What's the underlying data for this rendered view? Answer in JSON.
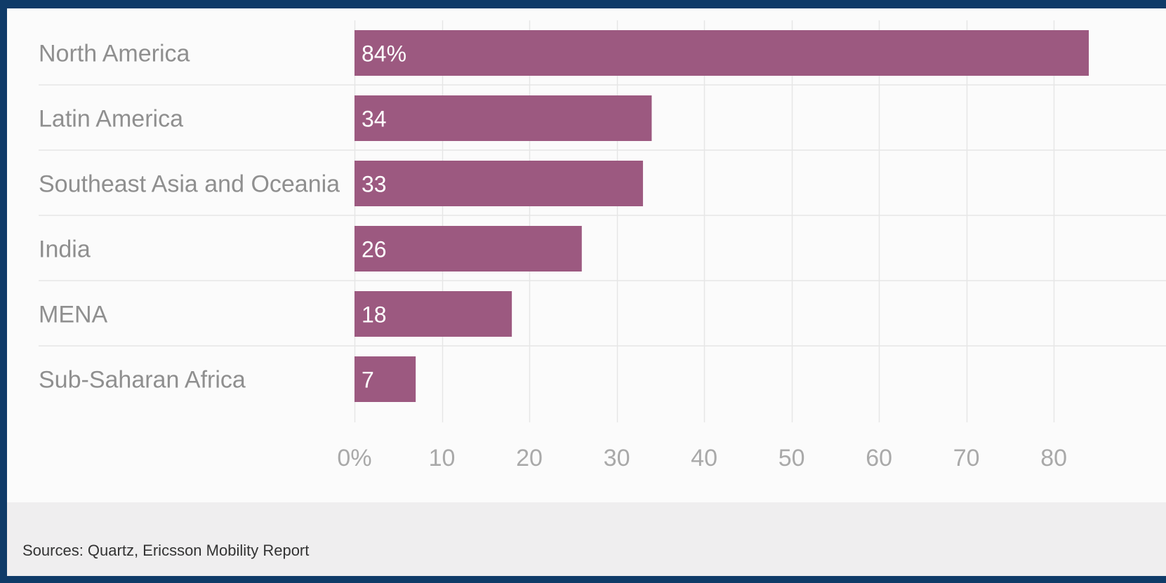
{
  "chart_data": {
    "type": "bar",
    "orientation": "horizontal",
    "categories": [
      "North America",
      "Latin America",
      "Southeast Asia and Oceania",
      "India",
      "MENA",
      "Sub-Saharan Africa"
    ],
    "values": [
      84,
      34,
      33,
      26,
      18,
      7
    ],
    "data_labels": [
      "84%",
      "34",
      "33",
      "26",
      "18",
      "7"
    ],
    "xlim": [
      0,
      84
    ],
    "x_ticks": [
      0,
      10,
      20,
      30,
      40,
      50,
      60,
      70,
      80
    ],
    "x_tick_labels": [
      "0%",
      "10",
      "20",
      "30",
      "40",
      "50",
      "60",
      "70",
      "80"
    ],
    "grid": true,
    "bar_color": "#9c5980",
    "title": "",
    "xlabel": "",
    "ylabel": ""
  },
  "footer": {
    "source": "Sources: Quartz, Ericsson Mobility Report"
  }
}
